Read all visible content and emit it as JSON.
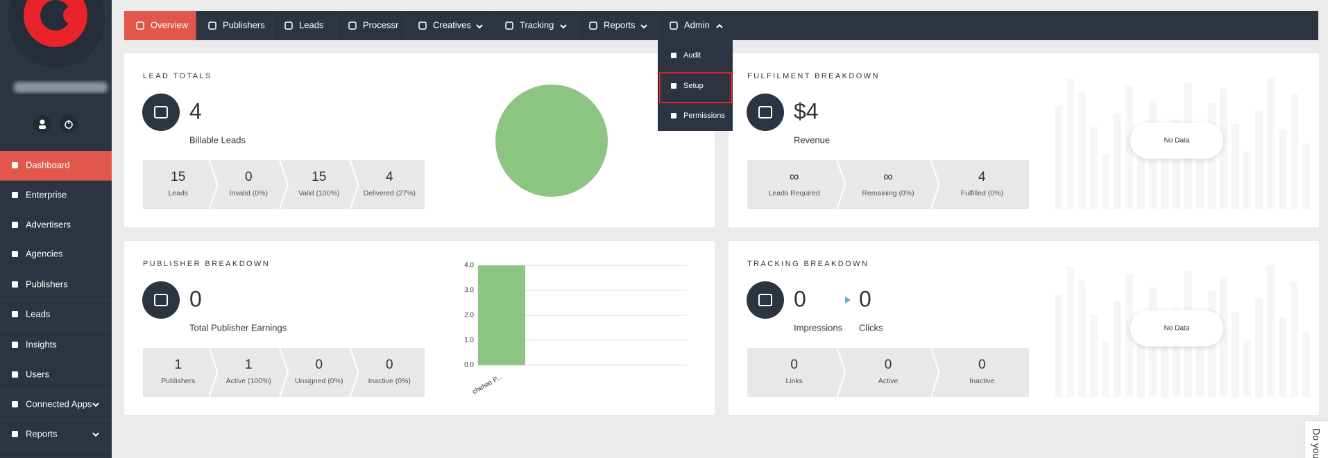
{
  "sidebar": {
    "menu": [
      "Dashboard",
      "Enterprise",
      "Advertisers",
      "Agencies",
      "Publishers",
      "Leads",
      "Insights",
      "Users",
      "Connected Apps",
      "Reports"
    ]
  },
  "topnav": {
    "items": [
      "Overview",
      "Publishers",
      "Leads",
      "Processr",
      "Creatives",
      "Tracking",
      "Reports",
      "Admin"
    ],
    "admin_menu": [
      "Audit",
      "Setup",
      "Permissions"
    ]
  },
  "cards": [
    {
      "title": "LEAD TOTALS",
      "value": "4",
      "label": "Billable Leads",
      "stats": [
        {
          "value": "15",
          "label": "Leads"
        },
        {
          "value": "0",
          "label": "Invalid (0%)"
        },
        {
          "value": "15",
          "label": "Valid (100%)"
        },
        {
          "value": "4",
          "label": "Delivered (27%)"
        }
      ]
    },
    {
      "title": "FULFILMENT BREAKDOWN",
      "value": "$4",
      "label": "Revenue",
      "stats": [
        {
          "value": "∞",
          "label": "Leads Required"
        },
        {
          "value": "∞",
          "label": "Remaining (0%)"
        },
        {
          "value": "4",
          "label": "Fulfilled (0%)"
        }
      ],
      "no_data": "No Data"
    },
    {
      "title": "PUBLISHER BREAKDOWN",
      "value": "0",
      "label": "Total Publisher Earnings",
      "stats": [
        {
          "value": "1",
          "label": "Publishers"
        },
        {
          "value": "1",
          "label": "Active (100%)"
        },
        {
          "value": "0",
          "label": "Unsigned (0%)"
        },
        {
          "value": "0",
          "label": "Inactive (0%)"
        }
      ],
      "chart": {
        "type": "bar",
        "categories": [
          "chelsie P..."
        ],
        "values": [
          4
        ],
        "color": "#8cc581",
        "ylim": [
          0,
          4
        ],
        "yticks": [
          {
            "value": 0,
            "label": "0.0"
          },
          {
            "value": 1,
            "label": "1.0"
          },
          {
            "value": 2,
            "label": "2.0"
          },
          {
            "value": 3,
            "label": "3.0"
          },
          {
            "value": 4,
            "label": "4.0"
          }
        ],
        "grid": true
      }
    },
    {
      "title": "TRACKING BREAKDOWN",
      "metrics": [
        {
          "value": "0",
          "label": "Impressions"
        },
        {
          "value": "0",
          "label": "Clicks"
        }
      ],
      "stats": [
        {
          "value": "0",
          "label": "Links"
        },
        {
          "value": "0",
          "label": "Active"
        },
        {
          "value": "0",
          "label": "Inactive"
        }
      ],
      "no_data": "No Data"
    }
  ],
  "chat_tab": "Do you"
}
